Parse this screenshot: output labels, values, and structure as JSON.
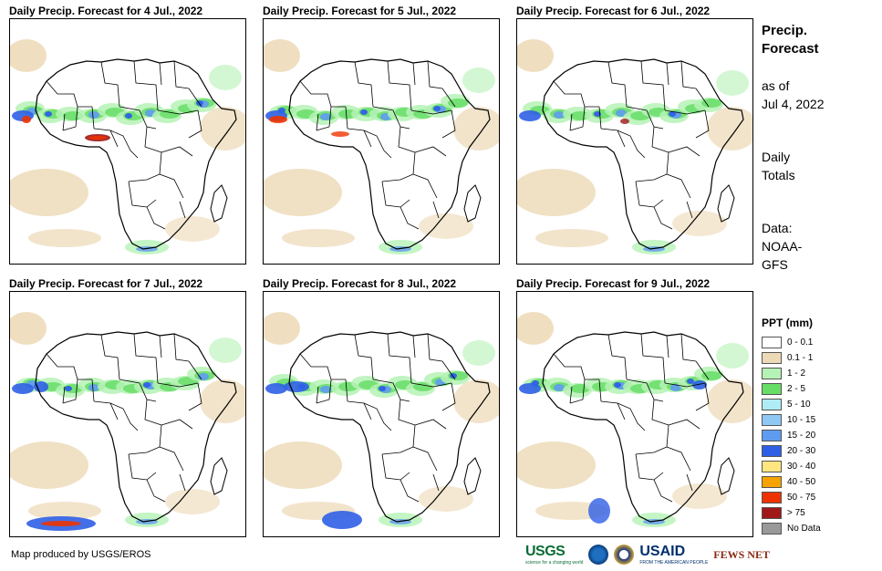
{
  "panels": [
    {
      "title": "Daily Precip. Forecast for 4 Jul., 2022",
      "day": 0
    },
    {
      "title": "Daily Precip. Forecast for 5 Jul., 2022",
      "day": 1
    },
    {
      "title": "Daily Precip. Forecast for 6 Jul., 2022",
      "day": 2
    },
    {
      "title": "Daily Precip. Forecast for 7 Jul., 2022",
      "day": 3
    },
    {
      "title": "Daily Precip. Forecast for 8 Jul., 2022",
      "day": 4
    },
    {
      "title": "Daily Precip. Forecast for 9 Jul., 2022",
      "day": 5
    }
  ],
  "side": {
    "title_line1": "Precip.",
    "title_line2": "Forecast",
    "asof_line1": "as of",
    "asof_line2": "Jul 4, 2022",
    "totals_line1": "Daily",
    "totals_line2": "Totals",
    "data_line1": "Data:",
    "data_line2": "NOAA-",
    "data_line3": "GFS"
  },
  "legend": {
    "title": "PPT (mm)",
    "items": [
      {
        "label": "0 - 0.1",
        "color": "#ffffff"
      },
      {
        "label": "0.1 - 1",
        "color": "#ecd9b5"
      },
      {
        "label": "1 - 2",
        "color": "#b5f2b5"
      },
      {
        "label": "2 - 5",
        "color": "#66dd66"
      },
      {
        "label": "5 - 10",
        "color": "#b0ecf5"
      },
      {
        "label": "10 - 15",
        "color": "#8fc8f5"
      },
      {
        "label": "15 - 20",
        "color": "#5f9cf0"
      },
      {
        "label": "20 - 30",
        "color": "#2f5fe6"
      },
      {
        "label": "30 - 40",
        "color": "#ffe680"
      },
      {
        "label": "40 - 50",
        "color": "#f5a300"
      },
      {
        "label": "50 - 75",
        "color": "#ee3300"
      },
      {
        "label": "> 75",
        "color": "#a01818"
      },
      {
        "label": "No Data",
        "color": "#999999"
      }
    ]
  },
  "footer": {
    "credit": "Map produced by USGS/EROS",
    "logo_usgs": "USGS",
    "logo_usgs_tagline": "science for a changing world",
    "logo_usaid": "USAID",
    "logo_usaid_tagline": "FROM THE AMERICAN PEOPLE",
    "logo_fews": "FEWS NET"
  }
}
